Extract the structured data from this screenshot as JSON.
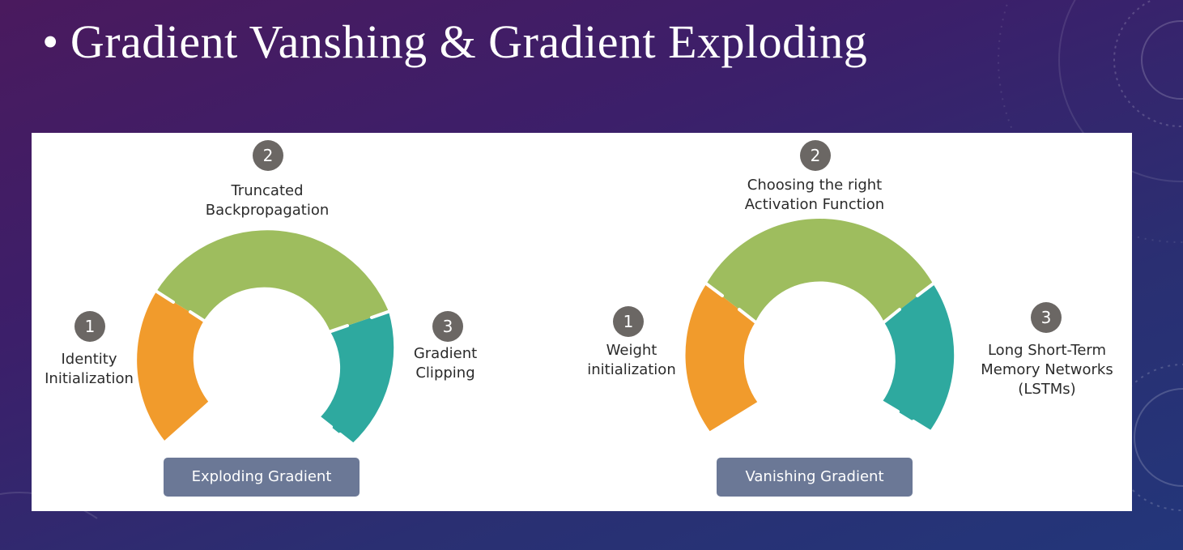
{
  "slide": {
    "bullet": "•",
    "title": "Gradient Vanshing & Gradient Exploding"
  },
  "diagrams": [
    {
      "caption": "Exploding Gradient",
      "steps": [
        {
          "number": "1",
          "lines": [
            "Identity",
            "Initialization"
          ]
        },
        {
          "number": "2",
          "lines": [
            "Truncated",
            "Backpropagation"
          ]
        },
        {
          "number": "3",
          "lines": [
            "Gradient",
            "Clipping"
          ]
        }
      ]
    },
    {
      "caption": "Vanishing Gradient",
      "steps": [
        {
          "number": "1",
          "lines": [
            "Weight",
            "initialization"
          ]
        },
        {
          "number": "2",
          "lines": [
            "Choosing the right",
            "Activation Function"
          ]
        },
        {
          "number": "3",
          "lines": [
            "Long Short-Term",
            "Memory Networks",
            "(LSTMs)"
          ]
        }
      ]
    }
  ],
  "colors": {
    "orange": "#f19b2c",
    "green": "#9ebd5e",
    "teal": "#2ea99f",
    "badge": "#6b6764",
    "caption": "#6b7896"
  }
}
